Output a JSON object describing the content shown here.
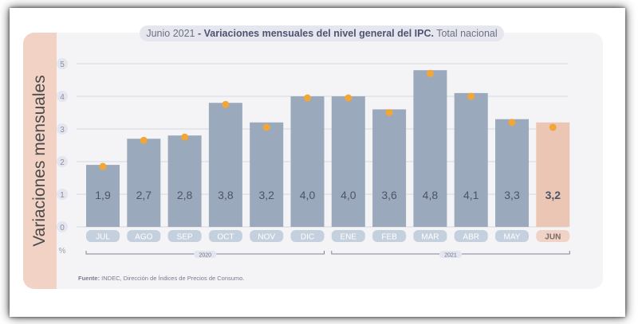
{
  "title": {
    "date": "Junio 2021",
    "separator": " - ",
    "main": "Variaciones mensuales del nivel general del IPC.",
    "scope": " Total nacional"
  },
  "source": {
    "label": "Fuente:",
    "text": " INDEC, Dirección de Índices de Precios de Consumo."
  },
  "colors": {
    "bar": "#9aa9bb",
    "highlight_bar": "#ebc6b4",
    "marker": "#f2a638",
    "label_pill": "#c5d0de",
    "highlight_pill": "#f0d3c6"
  },
  "chart_data": {
    "type": "bar",
    "ylabel": "Variaciones mensuales",
    "yunit": "%",
    "ylim": [
      0,
      5
    ],
    "yticks": [
      "0",
      "1",
      "2",
      "3",
      "4",
      "5"
    ],
    "grid": true,
    "categories": [
      "JUL",
      "AGO",
      "SEP",
      "OCT",
      "NOV",
      "DIC",
      "ENE",
      "FEB",
      "MAR",
      "ABR",
      "MAY",
      "JUN"
    ],
    "values": [
      1.9,
      2.7,
      2.8,
      3.8,
      3.2,
      4.0,
      4.0,
      3.6,
      4.8,
      4.1,
      3.3,
      3.2
    ],
    "value_labels": [
      "1,9",
      "2,7",
      "2,8",
      "3,8",
      "3,2",
      "4,0",
      "4,0",
      "3,6",
      "4,8",
      "4,1",
      "3,3",
      "3,2"
    ],
    "markers": [
      1.85,
      2.65,
      2.75,
      3.75,
      3.05,
      3.95,
      3.95,
      3.5,
      4.7,
      4.0,
      3.2,
      3.05
    ],
    "highlight_index": 11,
    "year_groups": [
      {
        "label": "2020",
        "start": 0,
        "end": 5
      },
      {
        "label": "2021",
        "start": 6,
        "end": 11
      }
    ]
  }
}
